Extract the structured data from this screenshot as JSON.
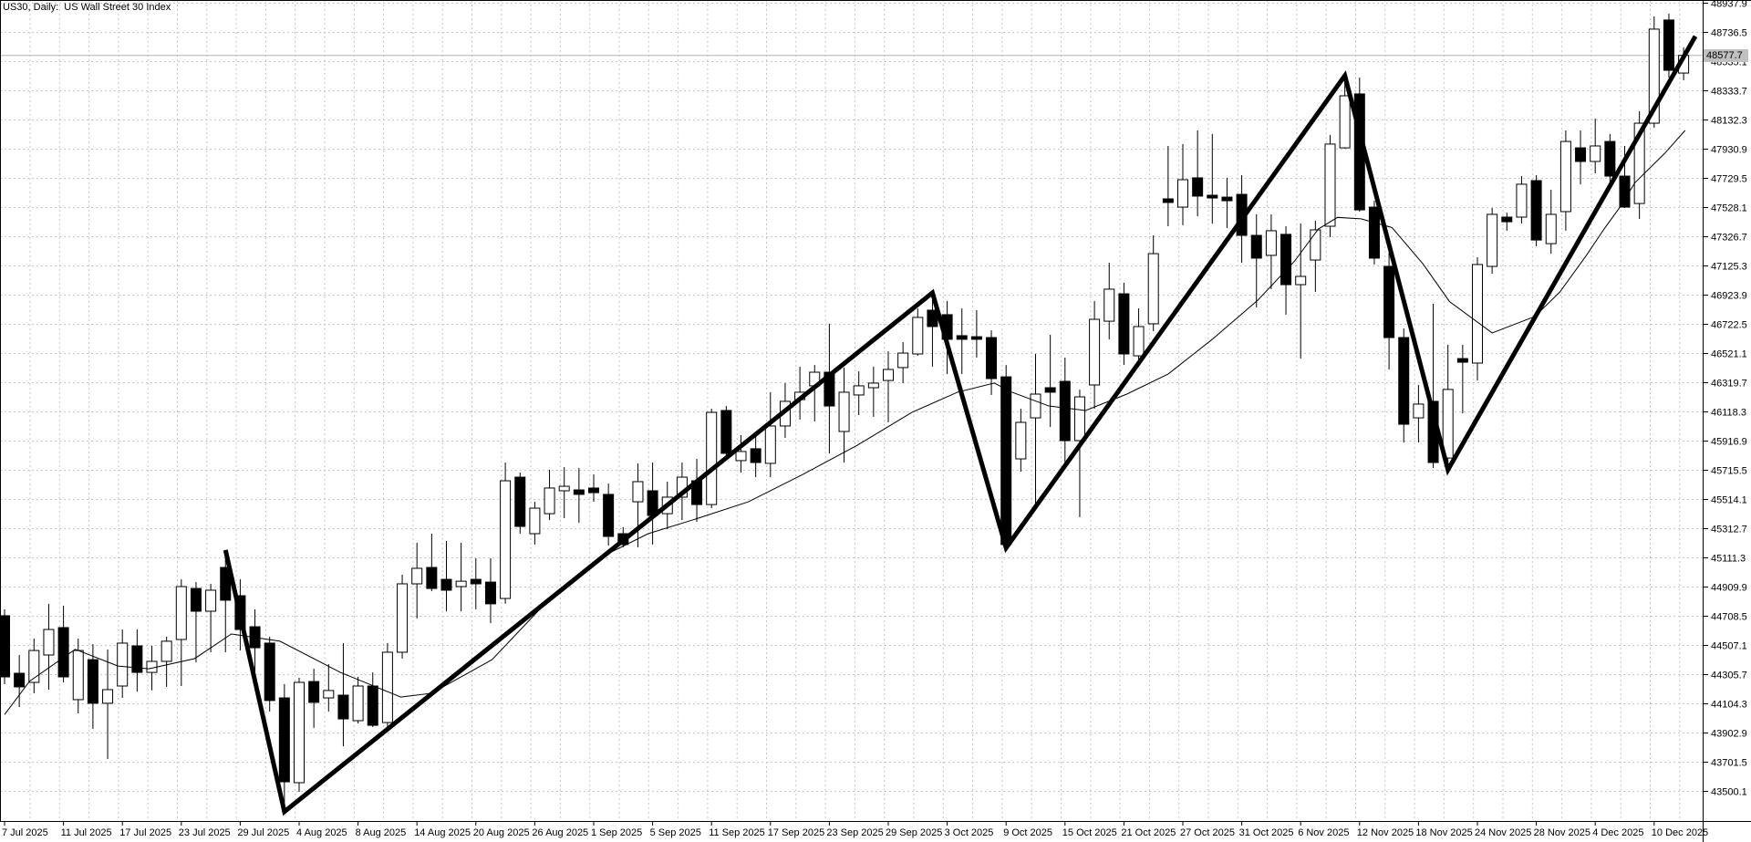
{
  "window": {
    "title": "US30, Daily:  US Wall Street 30 Index"
  },
  "colors": {
    "background": "#ffffff",
    "foreground": "#000000",
    "grid": "#c6c6c6",
    "bid_line": "#b4b4b4",
    "price_tag_bg": "#c0c0c0",
    "bull_fill": "#ffffff",
    "bear_fill": "#000000"
  },
  "chart_data": {
    "type": "candlestick",
    "symbol": "US30",
    "timeframe": "Daily",
    "description": "US Wall Street 30 Index",
    "current_price": "48577.7",
    "title": "US30, Daily:  US Wall Street 30 Index",
    "grid": true,
    "y_axis_labels": [
      "48937.9",
      "48736.5",
      "48535.1",
      "48333.7",
      "48132.3",
      "47930.9",
      "47729.5",
      "47528.1",
      "47326.7",
      "47125.3",
      "46923.9",
      "46722.5",
      "46521.1",
      "46319.7",
      "46118.3",
      "45916.9",
      "45715.5",
      "45514.1",
      "45312.7",
      "45111.3",
      "44909.9",
      "44708.5",
      "44507.1",
      "44305.7",
      "44104.3",
      "43902.9",
      "43701.5",
      "43500.1"
    ],
    "x_axis_labels": [
      "7 Jul 2025",
      "11 Jul 2025",
      "17 Jul 2025",
      "23 Jul 2025",
      "29 Jul 2025",
      "4 Aug 2025",
      "8 Aug 2025",
      "14 Aug 2025",
      "20 Aug 2025",
      "26 Aug 2025",
      "1 Sep 2025",
      "5 Sep 2025",
      "11 Sep 2025",
      "17 Sep 2025",
      "23 Sep 2025",
      "29 Sep 2025",
      "3 Oct 2025",
      "9 Oct 2025",
      "15 Oct 2025",
      "21 Oct 2025",
      "27 Oct 2025",
      "31 Oct 2025",
      "6 Nov 2025",
      "12 Nov 2025",
      "18 Nov 2025",
      "24 Nov 2025",
      "28 Nov 2025",
      "4 Dec 2025",
      "10 Dec 2025"
    ],
    "ylim": [
      43400,
      48960
    ],
    "bars_per_label": 4,
    "candles": [
      [
        44712,
        44756,
        44240,
        44290
      ],
      [
        44315,
        44441,
        44082,
        44221
      ],
      [
        44252,
        44554,
        44177,
        44472
      ],
      [
        44441,
        44794,
        44202,
        44617
      ],
      [
        44630,
        44781,
        44252,
        44290
      ],
      [
        44133,
        44554,
        44038,
        44472
      ],
      [
        44409,
        44516,
        43931,
        44108
      ],
      [
        44108,
        44479,
        43723,
        44202
      ],
      [
        44227,
        44617,
        44145,
        44523
      ],
      [
        44504,
        44617,
        44189,
        44321
      ],
      [
        44321,
        44504,
        44196,
        44397
      ],
      [
        44397,
        44567,
        44221,
        44536
      ],
      [
        44548,
        44963,
        44227,
        44913
      ],
      [
        44900,
        44944,
        44390,
        44743
      ],
      [
        44743,
        44932,
        44460,
        44888
      ],
      [
        45045,
        45165,
        44460,
        44819
      ],
      [
        44850,
        44963,
        44472,
        44617
      ],
      [
        44636,
        44756,
        44321,
        44491
      ],
      [
        44523,
        44567,
        44051,
        44127
      ],
      [
        44145,
        44240,
        43360,
        43566
      ],
      [
        43560,
        44284,
        43497,
        44252
      ],
      [
        44258,
        44346,
        43938,
        44114
      ],
      [
        44145,
        44378,
        44051,
        44196
      ],
      [
        44164,
        44523,
        43811,
        44000
      ],
      [
        43988,
        44290,
        43969,
        44227
      ],
      [
        44227,
        44321,
        43944,
        43956
      ],
      [
        43975,
        44523,
        43925,
        44460
      ],
      [
        44460,
        44995,
        44416,
        44932
      ],
      [
        44932,
        45215,
        44693,
        45039
      ],
      [
        45045,
        45278,
        44881,
        44900
      ],
      [
        44963,
        45228,
        44743,
        44888
      ],
      [
        44913,
        45215,
        44743,
        44950
      ],
      [
        44963,
        45108,
        44756,
        44932
      ],
      [
        44944,
        45108,
        44661,
        44794
      ],
      [
        44831,
        45769,
        44794,
        45643
      ],
      [
        45668,
        45700,
        45278,
        45328
      ],
      [
        45278,
        45498,
        45203,
        45454
      ],
      [
        45416,
        45719,
        45372,
        45593
      ],
      [
        45574,
        45737,
        45385,
        45605
      ],
      [
        45580,
        45731,
        45353,
        45549
      ],
      [
        45593,
        45687,
        45498,
        45561
      ],
      [
        45549,
        45624,
        45196,
        45259
      ],
      [
        45278,
        45322,
        45184,
        45203
      ],
      [
        45498,
        45763,
        45184,
        45637
      ],
      [
        45574,
        45769,
        45203,
        45404
      ],
      [
        45416,
        45637,
        45309,
        45530
      ],
      [
        45530,
        45769,
        45372,
        45668
      ],
      [
        45643,
        45794,
        45360,
        45479
      ],
      [
        45479,
        46140,
        45454,
        46115
      ],
      [
        46128,
        46159,
        45794,
        45832
      ],
      [
        45782,
        45958,
        45700,
        45845
      ],
      [
        45864,
        45952,
        45668,
        45769
      ],
      [
        45763,
        46254,
        45668,
        46021
      ],
      [
        46021,
        46317,
        45939,
        46191
      ],
      [
        46203,
        46430,
        46065,
        46254
      ],
      [
        46298,
        46442,
        46052,
        46392
      ],
      [
        46392,
        46726,
        45832,
        46159
      ],
      [
        45983,
        46424,
        45769,
        46254
      ],
      [
        46235,
        46398,
        46096,
        46298
      ],
      [
        46285,
        46430,
        46084,
        46317
      ],
      [
        46335,
        46537,
        46046,
        46411
      ],
      [
        46424,
        46600,
        46317,
        46524
      ],
      [
        46518,
        46832,
        46505,
        46770
      ],
      [
        46820,
        46933,
        46430,
        46707
      ],
      [
        46789,
        46883,
        46379,
        46619
      ],
      [
        46644,
        46832,
        46379,
        46619
      ],
      [
        46637,
        46820,
        46493,
        46619
      ],
      [
        46631,
        46681,
        46235,
        46348
      ],
      [
        46360,
        46442,
        45180,
        45203
      ],
      [
        45794,
        46140,
        45706,
        46046
      ],
      [
        46077,
        46518,
        45486,
        46241
      ],
      [
        46285,
        46650,
        46014,
        46254
      ],
      [
        46329,
        46493,
        45769,
        45920
      ],
      [
        45920,
        46272,
        45392,
        46222
      ],
      [
        46304,
        46883,
        46140,
        46757
      ],
      [
        46744,
        47147,
        46619,
        46965
      ],
      [
        46933,
        47009,
        46442,
        46518
      ],
      [
        46505,
        46832,
        46461,
        46707
      ],
      [
        46726,
        47336,
        46675,
        47210
      ],
      [
        47588,
        47953,
        47399,
        47563
      ],
      [
        47531,
        47966,
        47406,
        47720
      ],
      [
        47733,
        48060,
        47468,
        47607
      ],
      [
        47613,
        48035,
        47418,
        47594
      ],
      [
        47600,
        47733,
        47387,
        47575
      ],
      [
        47619,
        47752,
        47147,
        47336
      ],
      [
        47336,
        47481,
        46839,
        47179
      ],
      [
        47198,
        47481,
        46965,
        47368
      ],
      [
        47343,
        47399,
        46789,
        46996
      ],
      [
        46996,
        47418,
        46486,
        47053
      ],
      [
        47166,
        47437,
        46946,
        47374
      ],
      [
        47399,
        48029,
        47323,
        47966
      ],
      [
        47940,
        48438,
        47934,
        48299
      ],
      [
        48312,
        48425,
        47500,
        47512
      ],
      [
        47531,
        47575,
        47135,
        47179
      ],
      [
        47122,
        47217,
        46411,
        46631
      ],
      [
        46631,
        46694,
        45907,
        46033
      ],
      [
        46077,
        46304,
        45907,
        46172
      ],
      [
        46191,
        46864,
        45731,
        45769
      ],
      [
        45800,
        46581,
        45719,
        46273
      ],
      [
        46486,
        46581,
        46109,
        46461
      ],
      [
        46455,
        47185,
        46335,
        47135
      ],
      [
        47122,
        47525,
        47072,
        47481
      ],
      [
        47462,
        47493,
        47368,
        47430
      ],
      [
        47462,
        47745,
        47418,
        47689
      ],
      [
        47714,
        47751,
        47261,
        47304
      ],
      [
        47279,
        47651,
        47210,
        47481
      ],
      [
        47500,
        48060,
        47368,
        47984
      ],
      [
        47940,
        48060,
        47688,
        47846
      ],
      [
        47846,
        48142,
        47764,
        47953
      ],
      [
        47984,
        48035,
        47682,
        47745
      ],
      [
        47745,
        47953,
        47525,
        47531
      ],
      [
        47556,
        48192,
        47449,
        48110
      ],
      [
        48110,
        48847,
        48079,
        48759
      ],
      [
        48822,
        48866,
        48425,
        48475
      ],
      [
        48456,
        48633,
        48406,
        48577.7
      ]
    ],
    "indicators": [
      {
        "name": "ZigZag",
        "style": "thick-line",
        "points": [
          [
            15,
            45165
          ],
          [
            19,
            43360
          ],
          [
            63,
            46940
          ],
          [
            68,
            45180
          ],
          [
            91,
            48438
          ],
          [
            98,
            45719
          ],
          [
            114.8,
            48710
          ]
        ]
      },
      {
        "name": "Moving Average",
        "style": "thin-line",
        "points": [
          [
            0,
            44030
          ],
          [
            1.7,
            44260
          ],
          [
            4.8,
            44480
          ],
          [
            7.7,
            44365
          ],
          [
            9.8,
            44346
          ],
          [
            12.9,
            44416
          ],
          [
            15.4,
            44586
          ],
          [
            18.7,
            44536
          ],
          [
            22.8,
            44321
          ],
          [
            26.9,
            44151
          ],
          [
            29,
            44177
          ],
          [
            33.1,
            44409
          ],
          [
            36.8,
            44806
          ],
          [
            40.6,
            45121
          ],
          [
            43.7,
            45278
          ],
          [
            46.7,
            45372
          ],
          [
            50.5,
            45498
          ],
          [
            54.2,
            45687
          ],
          [
            57.9,
            45888
          ],
          [
            61.6,
            46115
          ],
          [
            64.7,
            46254
          ],
          [
            67.2,
            46317
          ],
          [
            68.4,
            46254
          ],
          [
            70.9,
            46159
          ],
          [
            73.4,
            46128
          ],
          [
            76.2,
            46241
          ],
          [
            79,
            46379
          ],
          [
            82,
            46619
          ],
          [
            85.1,
            46890
          ],
          [
            87.6,
            47160
          ],
          [
            89.2,
            47380
          ],
          [
            90.5,
            47460
          ],
          [
            92.1,
            47450
          ],
          [
            94.2,
            47390
          ],
          [
            96.3,
            47140
          ],
          [
            98.1,
            46880
          ],
          [
            101,
            46663
          ],
          [
            103.9,
            46776
          ],
          [
            105.6,
            46946
          ],
          [
            107.4,
            47198
          ],
          [
            108.6,
            47380
          ],
          [
            109.6,
            47520
          ],
          [
            110.7,
            47700
          ],
          [
            112.7,
            47900
          ],
          [
            114.1,
            48060
          ]
        ]
      }
    ]
  }
}
